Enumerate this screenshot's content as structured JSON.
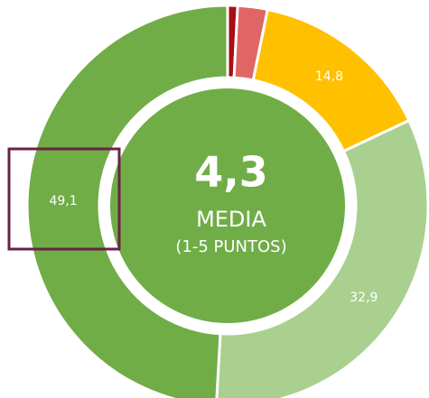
{
  "chart_data": {
    "type": "donut",
    "categories": [
      null,
      null,
      null,
      null,
      null
    ],
    "values": [
      0.8,
      2.4,
      14.8,
      32.9,
      49.1
    ],
    "value_labels": [
      null,
      null,
      "14,8",
      "32,9",
      "49,1"
    ],
    "colors": [
      "#a50f15",
      "#e06666",
      "#ffc000",
      "#a9d08e",
      "#70ad47"
    ],
    "center_value": "4,3",
    "center_label": "MEDIA",
    "center_sublabel": "(1-5 PUNTOS)",
    "center_color": "#70ad47"
  }
}
